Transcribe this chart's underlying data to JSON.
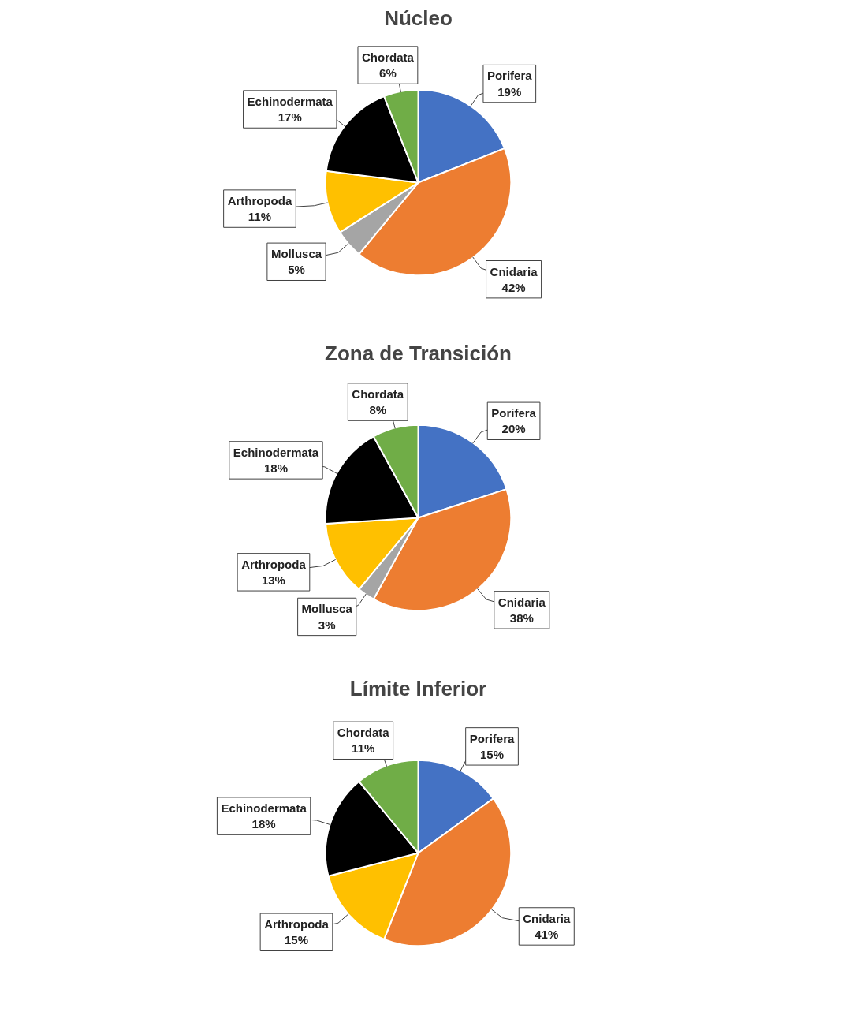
{
  "chart_data": [
    {
      "type": "pie",
      "title": "Núcleo",
      "categories": [
        "Porifera",
        "Cnidaria",
        "Mollusca",
        "Arthropoda",
        "Echinodermata",
        "Chordata"
      ],
      "values": [
        19,
        42,
        5,
        11,
        17,
        6
      ],
      "value_labels": [
        "19%",
        "42%",
        "5%",
        "11%",
        "17%",
        "6%"
      ],
      "colors": [
        "#4472c4",
        "#ed7d31",
        "#a5a5a5",
        "#ffc000",
        "#000000",
        "#70ad47"
      ]
    },
    {
      "type": "pie",
      "title": "Zona de Transición",
      "categories": [
        "Porifera",
        "Cnidaria",
        "Mollusca",
        "Arthropoda",
        "Echinodermata",
        "Chordata"
      ],
      "values": [
        20,
        38,
        3,
        13,
        18,
        8
      ],
      "value_labels": [
        "20%",
        "38%",
        "3%",
        "13%",
        "18%",
        "8%"
      ],
      "colors": [
        "#4472c4",
        "#ed7d31",
        "#a5a5a5",
        "#ffc000",
        "#000000",
        "#70ad47"
      ]
    },
    {
      "type": "pie",
      "title": "Límite Inferior",
      "categories": [
        "Porifera",
        "Cnidaria",
        "Arthropoda",
        "Echinodermata",
        "Chordata"
      ],
      "values": [
        15,
        41,
        15,
        18,
        11
      ],
      "value_labels": [
        "15%",
        "41%",
        "15%",
        "18%",
        "11%"
      ],
      "colors": [
        "#4472c4",
        "#ed7d31",
        "#ffc000",
        "#000000",
        "#70ad47"
      ]
    }
  ]
}
